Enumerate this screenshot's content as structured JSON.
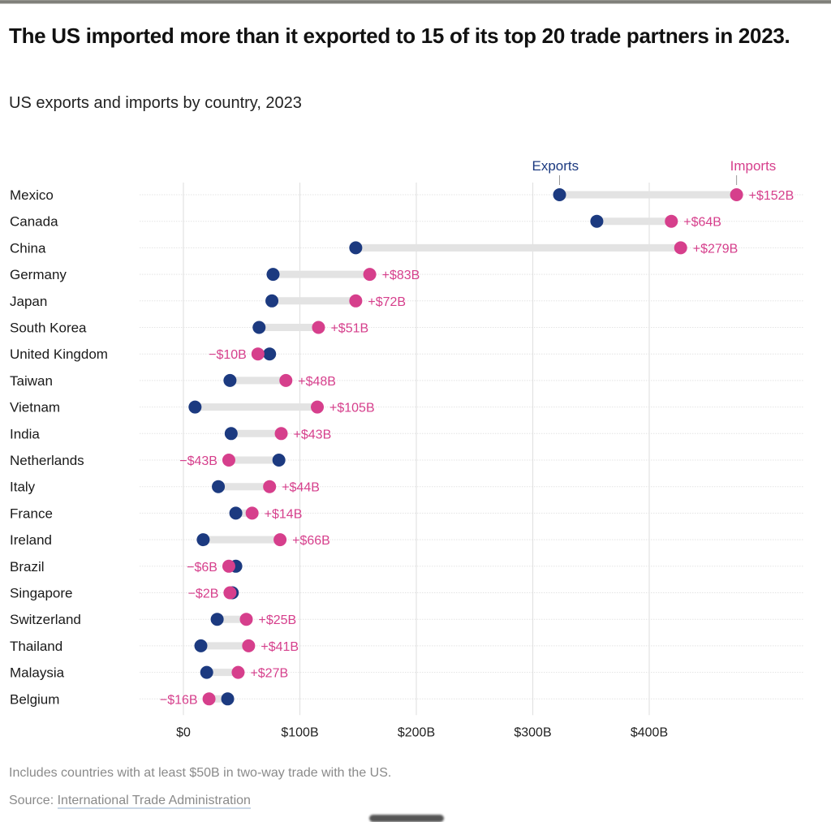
{
  "header": {
    "title": "The US imported more than it exported to 15 of its top 20 trade partners in 2023.",
    "subtitle": "US exports and imports by country, 2023"
  },
  "footer": {
    "note": "Includes countries with at least $50B in two-way trade with the US.",
    "source_prefix": "Source: ",
    "source_link": "International Trade Administration"
  },
  "colors": {
    "exports": "#1c3a80",
    "imports": "#d63f8c",
    "connector": "#e3e3e3",
    "grid": "#e2e2e2"
  },
  "chart_data": {
    "type": "dumbbell",
    "title": "The US imported more than it exported to 15 of its top 20 trade partners in 2023.",
    "subtitle": "US exports and imports by country, 2023",
    "xlabel": "",
    "ylabel": "",
    "xlim": [
      0,
      450
    ],
    "x_ticks": [
      0,
      100,
      200,
      300,
      400
    ],
    "x_tick_labels": [
      "$0",
      "$100B",
      "$200B",
      "$300B",
      "$400B"
    ],
    "grid": "vertical",
    "legend": {
      "placement": "top",
      "entries": [
        "Exports",
        "Imports"
      ]
    },
    "units": "billions USD",
    "categories": [
      "Mexico",
      "Canada",
      "China",
      "Germany",
      "Japan",
      "South Korea",
      "United Kingdom",
      "Taiwan",
      "Vietnam",
      "India",
      "Netherlands",
      "Italy",
      "France",
      "Ireland",
      "Brazil",
      "Singapore",
      "Switzerland",
      "Thailand",
      "Malaysia",
      "Belgium"
    ],
    "series": [
      {
        "name": "Exports",
        "values": [
          323,
          355,
          148,
          77,
          76,
          65,
          74,
          40,
          10,
          41,
          82,
          30,
          45,
          17,
          45,
          42,
          29,
          15,
          20,
          38
        ]
      },
      {
        "name": "Imports",
        "values": [
          475,
          419,
          427,
          160,
          148,
          116,
          64,
          88,
          115,
          84,
          39,
          74,
          59,
          83,
          39,
          40,
          54,
          56,
          47,
          22
        ]
      }
    ],
    "gap_labels": [
      "+$152B",
      "+$64B",
      "+$279B",
      "+$83B",
      "+$72B",
      "+$51B",
      "−$10B",
      "+$48B",
      "+$105B",
      "+$43B",
      "−$43B",
      "+$44B",
      "+$14B",
      "+$66B",
      "−$6B",
      "−$2B",
      "+$25B",
      "+$41B",
      "+$27B",
      "−$16B"
    ]
  }
}
